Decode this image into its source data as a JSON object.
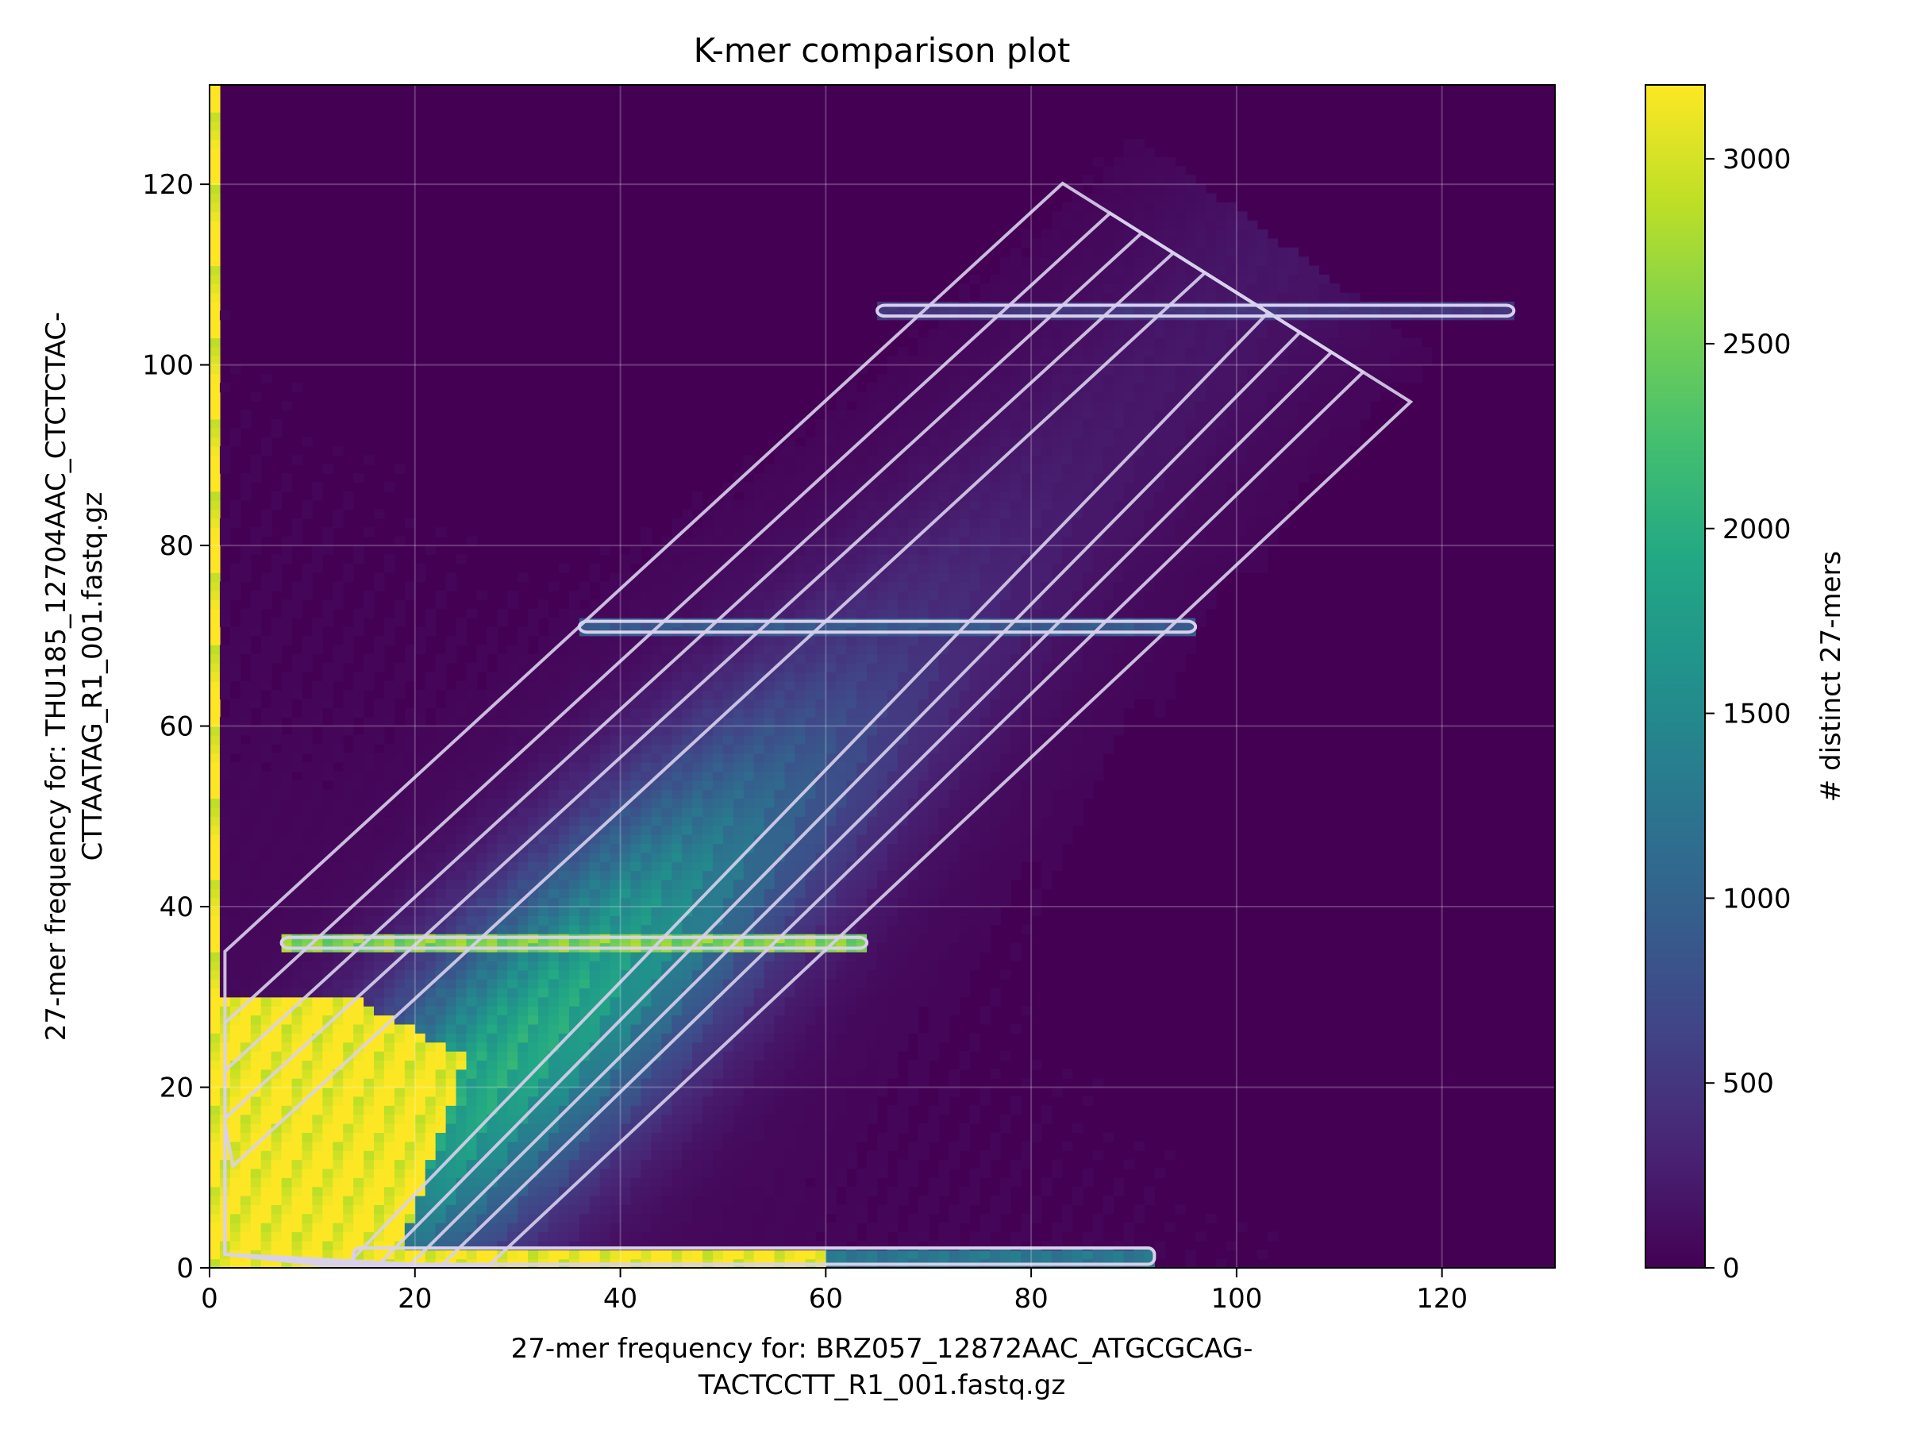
{
  "chart_data": {
    "type": "heatmap",
    "title": "K-mer comparison plot",
    "xlabel_lines": [
      "27-mer frequency for: BRZ057_12872AAC_ATGCGCAG-",
      "TACTCCTT_R1_001.fastq.gz"
    ],
    "ylabel_lines": [
      "27-mer frequency for: THU185_12704AAC_CTCTCTAC-",
      "CTTAATAG_R1_001.fastq.gz"
    ],
    "colorbar_label": "# distinct 27-mers",
    "colormap": "viridis",
    "xlim": [
      0,
      131
    ],
    "ylim": [
      0,
      131
    ],
    "x_ticks": [
      0,
      20,
      40,
      60,
      80,
      100,
      120
    ],
    "y_ticks": [
      0,
      20,
      40,
      60,
      80,
      100,
      120
    ],
    "colorbar_range": [
      0,
      3200
    ],
    "colorbar_ticks": [
      0,
      500,
      1000,
      1500,
      2000,
      2500,
      3000
    ],
    "grid": true,
    "contour_color": "#d8d0ec",
    "features": {
      "y_axis_band": {
        "x": 0.5,
        "y_min": 0,
        "y_max": 131,
        "value": 3200
      },
      "x_axis_band": {
        "y": 1,
        "x_min": 0,
        "x_max": 92,
        "value": 3200
      },
      "core_region": {
        "x_range": [
          0,
          26
        ],
        "y_range": [
          0,
          30
        ],
        "value": 3200
      },
      "main_diagonal": {
        "start": [
          10,
          0
        ],
        "end": [
          100,
          108
        ],
        "peak_value": 1900,
        "width": 12
      },
      "horizontal_streaks": [
        {
          "y": 36,
          "x_min": 7,
          "x_max": 64,
          "value": 2600
        },
        {
          "y": 71,
          "x_min": 36,
          "x_max": 96,
          "value": 900
        },
        {
          "y": 106,
          "x_min": 65,
          "x_max": 127,
          "value": 500
        }
      ]
    }
  }
}
